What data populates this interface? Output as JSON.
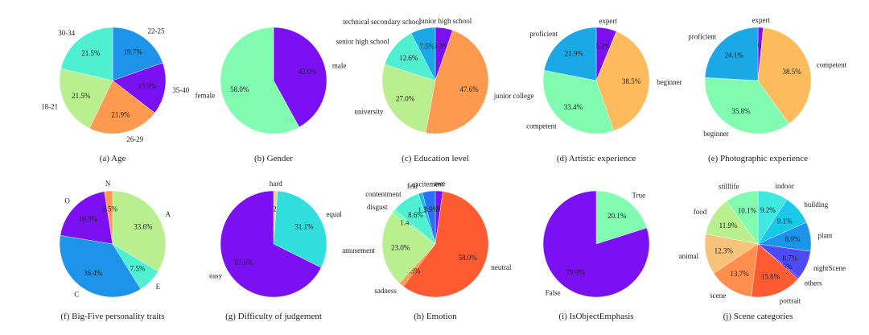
{
  "figure": {
    "background": "#ffffff"
  },
  "chart_data": [
    {
      "type": "pie",
      "caption": "(a) Age",
      "slices": [
        {
          "label": "22-25",
          "value": 19.7,
          "pct_text": "19.7%",
          "color": "#1d94ea"
        },
        {
          "label": "35-40",
          "value": 15.9,
          "pct_text": "15.9%",
          "color": "#7b10f2"
        },
        {
          "label": "26-29",
          "value": 21.9,
          "pct_text": "21.9%",
          "color": "#fd9a4f"
        },
        {
          "label": "18-21",
          "value": 21.5,
          "pct_text": "21.5%",
          "color": "#b9ef8e"
        },
        {
          "label": "30-34",
          "value": 21.5,
          "pct_text": "21.5%",
          "color": "#4ff0d2"
        }
      ]
    },
    {
      "type": "pie",
      "caption": "(b) Gender",
      "slices": [
        {
          "label": "male",
          "value": 42.0,
          "pct_text": "42.0%",
          "color": "#7b10f2"
        },
        {
          "label": "female",
          "value": 58.0,
          "pct_text": "58.0%",
          "color": "#80fbb0"
        }
      ]
    },
    {
      "type": "pie",
      "caption": "(c) Education level",
      "slices": [
        {
          "label": "junior high school",
          "value": 5.3,
          "pct_text": "5.3%",
          "color": "#7b10f2"
        },
        {
          "label": "junior college",
          "value": 47.6,
          "pct_text": "47.6%",
          "color": "#fd9a4f"
        },
        {
          "label": "university",
          "value": 27.0,
          "pct_text": "27.0%",
          "color": "#b9ef8e"
        },
        {
          "label": "senior high school",
          "value": 12.6,
          "pct_text": "12.6%",
          "color": "#4ff0d2"
        },
        {
          "label": "technical secondary school",
          "value": 7.5,
          "pct_text": "7.5%",
          "color": "#1aa9e6"
        }
      ]
    },
    {
      "type": "pie",
      "caption": "(d) Artistic experience",
      "slices": [
        {
          "label": "expert",
          "value": 6.2,
          "pct_text": "6.2%",
          "color": "#7b10f2"
        },
        {
          "label": "beginner",
          "value": 38.5,
          "pct_text": "38.5%",
          "color": "#fdbb5d"
        },
        {
          "label": "competent",
          "value": 33.4,
          "pct_text": "33.4%",
          "color": "#80fbb0"
        },
        {
          "label": "proficient",
          "value": 21.9,
          "pct_text": "21.9%",
          "color": "#1aa9e6"
        }
      ]
    },
    {
      "type": "pie",
      "caption": "(e) Photographic experience",
      "slices": [
        {
          "label": "expert",
          "value": 1.6,
          "pct_text": "1.6%",
          "color": "#7b10f2"
        },
        {
          "label": "competent",
          "value": 38.5,
          "pct_text": "38.5%",
          "color": "#fdbb5d"
        },
        {
          "label": "beginner",
          "value": 35.8,
          "pct_text": "35.8%",
          "color": "#80fbb0"
        },
        {
          "label": "proficient",
          "value": 24.1,
          "pct_text": "24.1%",
          "color": "#1aa9e6"
        }
      ]
    },
    {
      "type": "pie",
      "caption": "(f) Big-Five personality traits",
      "slices": [
        {
          "label": "A",
          "value": 33.6,
          "pct_text": "33.6%",
          "color": "#b9ef8e"
        },
        {
          "label": "E",
          "value": 7.5,
          "pct_text": "7.5%",
          "color": "#4ff0d2"
        },
        {
          "label": "C",
          "value": 36.4,
          "pct_text": "36.4%",
          "color": "#1d94ea"
        },
        {
          "label": "O",
          "value": 19.9,
          "pct_text": "19.9%",
          "color": "#7b10f2"
        },
        {
          "label": "N",
          "value": 2.5,
          "pct_text": "2.5%",
          "color": "#fd9a4f"
        }
      ]
    },
    {
      "type": "pie",
      "caption": "(g) Difficulty of judgement",
      "slices": [
        {
          "label": "hard",
          "value": 1.2,
          "pct_text": "1.2%",
          "color": "#e9d08e"
        },
        {
          "label": "equal",
          "value": 31.1,
          "pct_text": "31.1%",
          "color": "#30dede"
        },
        {
          "label": "easy",
          "value": 67.6,
          "pct_text": "67.6%",
          "color": "#7b10f2"
        }
      ]
    },
    {
      "type": "pie",
      "caption": "(h) Emotion",
      "slices": [
        {
          "label": "awe",
          "value": 2.3,
          "pct_text": "2.3%",
          "color": "#7b10f2"
        },
        {
          "label": "neutral",
          "value": 58.0,
          "pct_text": "58.0%",
          "color": "#ff5b33"
        },
        {
          "label": "sadness",
          "value": 1.5,
          "pct_text": "1.5%",
          "color": "#ff9e50"
        },
        {
          "label": "amusement",
          "value": 23.0,
          "pct_text": "23.0%",
          "color": "#b9ef8e"
        },
        {
          "label": "disgust",
          "value": 1.4,
          "pct_text": "1.4%",
          "color": "#80fbb0"
        },
        {
          "label": "contentment",
          "value": 8.6,
          "pct_text": "8.6%",
          "color": "#4ff0d2"
        },
        {
          "label": "fear",
          "value": 1.3,
          "pct_text": "1.3%",
          "color": "#1ab8e8"
        },
        {
          "label": "excitement",
          "value": 3.9,
          "pct_text": "3.9%",
          "color": "#2a72f3"
        }
      ]
    },
    {
      "type": "pie",
      "caption": "(i) IsObjectEmphasis",
      "slices": [
        {
          "label": "True",
          "value": 20.1,
          "pct_text": "20.1%",
          "color": "#80fbb0"
        },
        {
          "label": "False",
          "value": 79.9,
          "pct_text": "79.9%",
          "color": "#7b10f2"
        }
      ]
    },
    {
      "type": "pie",
      "caption": "(j) Scene categories",
      "slices": [
        {
          "label": "indoor",
          "value": 9.2,
          "pct_text": "9.2%",
          "color": "#3de9e0"
        },
        {
          "label": "building",
          "value": 9.1,
          "pct_text": "9.1%",
          "color": "#1ac9ea"
        },
        {
          "label": "plant",
          "value": 8.9,
          "pct_text": "8.9%",
          "color": "#1d94ea"
        },
        {
          "label": "nightScene",
          "value": 8.7,
          "pct_text": "8.7%",
          "color": "#4c4bf5"
        },
        {
          "label": "others",
          "value": 0.5,
          "pct_text": "0.5%",
          "color": "#7b10f2"
        },
        {
          "label": "portrait",
          "value": 15.6,
          "pct_text": "15.6%",
          "color": "#ff5b33"
        },
        {
          "label": "scene",
          "value": 13.7,
          "pct_text": "13.7%",
          "color": "#ff8e4f"
        },
        {
          "label": "animal",
          "value": 12.3,
          "pct_text": "12.3%",
          "color": "#f8c27a"
        },
        {
          "label": "food",
          "value": 11.9,
          "pct_text": "11.9%",
          "color": "#b9ef8e"
        },
        {
          "label": "stilllife",
          "value": 10.1,
          "pct_text": "10.1%",
          "color": "#80fbb0"
        }
      ]
    }
  ]
}
